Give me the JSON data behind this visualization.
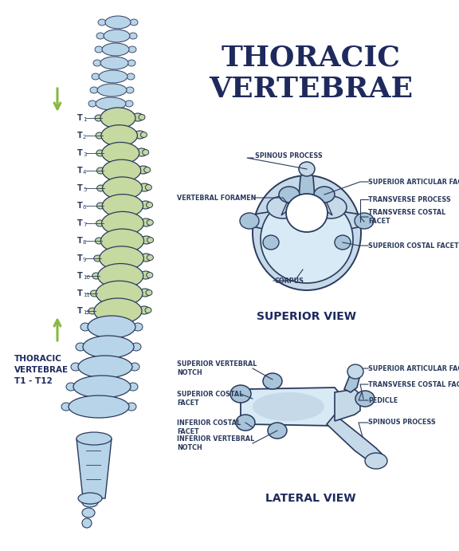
{
  "title_line1": "THORACIC",
  "title_line2": "VERTEBRAE",
  "title_color": "#1e2a5e",
  "bg_color": "#ffffff",
  "spine_green": "#c5d9a0",
  "spine_blue": "#b8d4e8",
  "vert_fill": "#c5d9e8",
  "vert_fill2": "#a8c4d8",
  "vert_fill3": "#d8eaf5",
  "outline_color": "#2a3a5c",
  "arrow_color": "#8ab840",
  "thoracic_label": "THORACIC\nVERTEBRAE\nT1 - T12",
  "t_labels": [
    "T1",
    "T2",
    "T3",
    "T4",
    "T5",
    "T6",
    "T7",
    "T8",
    "T9",
    "T10",
    "T11",
    "T12"
  ]
}
